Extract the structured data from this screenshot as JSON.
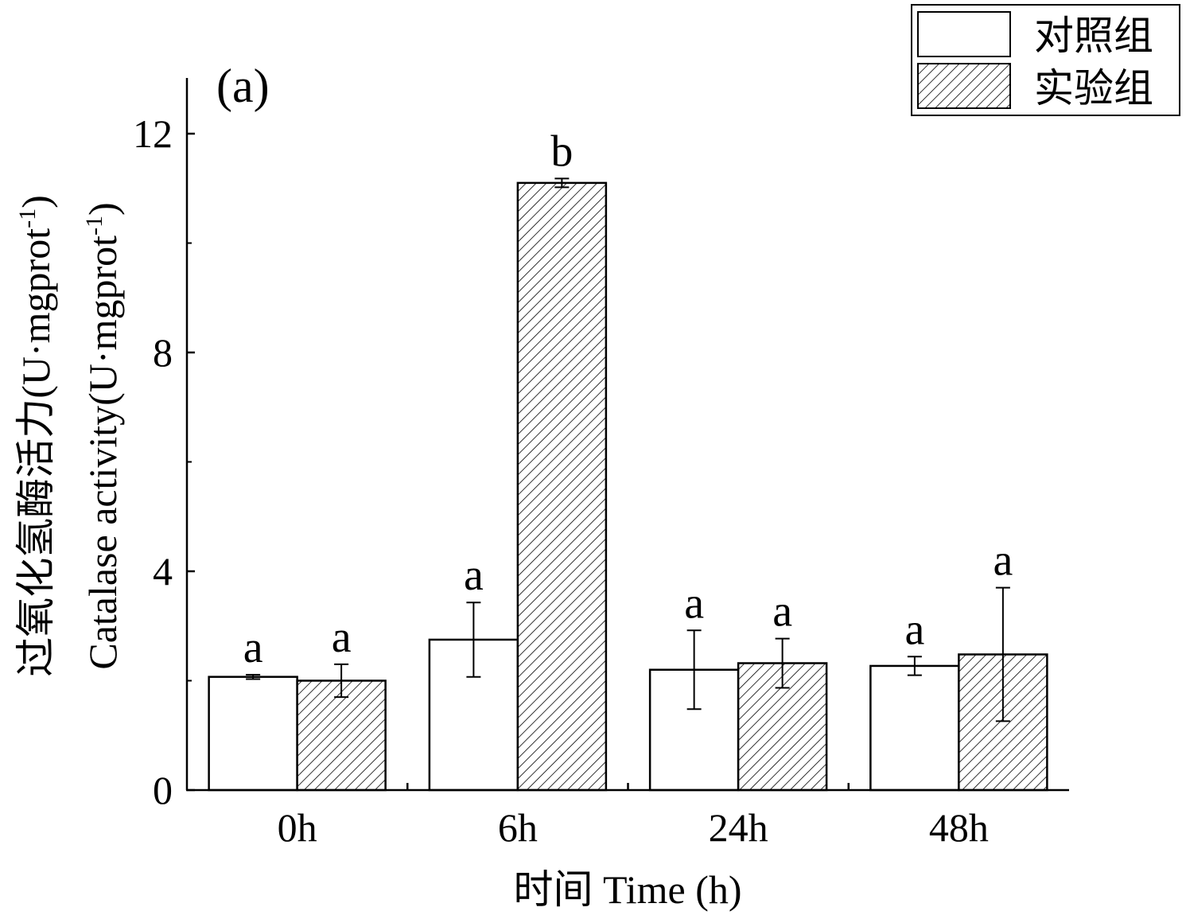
{
  "chart_data": {
    "type": "bar",
    "panel_label": "(a)",
    "categories": [
      "0h",
      "6h",
      "24h",
      "48h"
    ],
    "series": [
      {
        "name": "对照组",
        "pattern": "none",
        "values": [
          2.07,
          2.75,
          2.2,
          2.27
        ],
        "errors": [
          0.04,
          0.68,
          0.72,
          0.17
        ],
        "sig_letters": [
          "a",
          "a",
          "a",
          "a"
        ]
      },
      {
        "name": "实验组",
        "pattern": "hatch",
        "values": [
          2.0,
          11.1,
          2.32,
          2.48
        ],
        "errors": [
          0.3,
          0.08,
          0.45,
          1.22
        ],
        "sig_letters": [
          "a",
          "b",
          "a",
          "a"
        ]
      }
    ],
    "xlabel": "时间 Time (h)",
    "ylabel_zh": "过氧化氢酶活力(U·mgprot",
    "ylabel_en": "Catalase activity(U·mgprot",
    "ylabel_sup": "-1",
    "ylabel_close": ")",
    "yticks": [
      0,
      4,
      8,
      12
    ],
    "ylim": [
      0,
      13
    ],
    "grid": false,
    "legend_position": "top-right",
    "colors": {
      "bar_fill": "#ffffff",
      "stroke": "#000000",
      "hatch": "#000000"
    }
  }
}
